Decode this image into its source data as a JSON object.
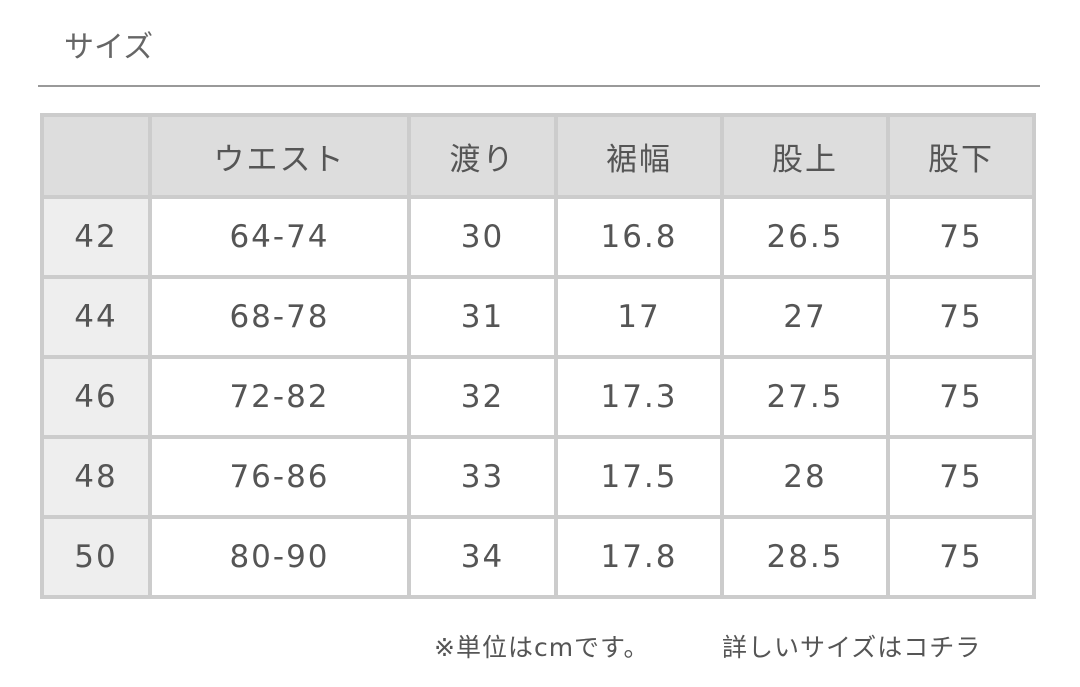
{
  "title": "サイズ",
  "table": {
    "headers": [
      "",
      "ウエスト",
      "渡り",
      "裾幅",
      "股上",
      "股下"
    ],
    "rows": [
      [
        "42",
        "64-74",
        "30",
        "16.8",
        "26.5",
        "75"
      ],
      [
        "44",
        "68-78",
        "31",
        "17",
        "27",
        "75"
      ],
      [
        "46",
        "72-82",
        "32",
        "17.3",
        "27.5",
        "75"
      ],
      [
        "48",
        "76-86",
        "33",
        "17.5",
        "28",
        "75"
      ],
      [
        "50",
        "80-90",
        "34",
        "17.8",
        "28.5",
        "75"
      ]
    ]
  },
  "footer": {
    "unit_note": "※単位はcmです。",
    "details_link": "詳しいサイズはコチラ"
  },
  "colors": {
    "border": "#cccccc",
    "header_bg": "#dddddd",
    "row_header_bg": "#eeeeee",
    "text": "#555555"
  }
}
